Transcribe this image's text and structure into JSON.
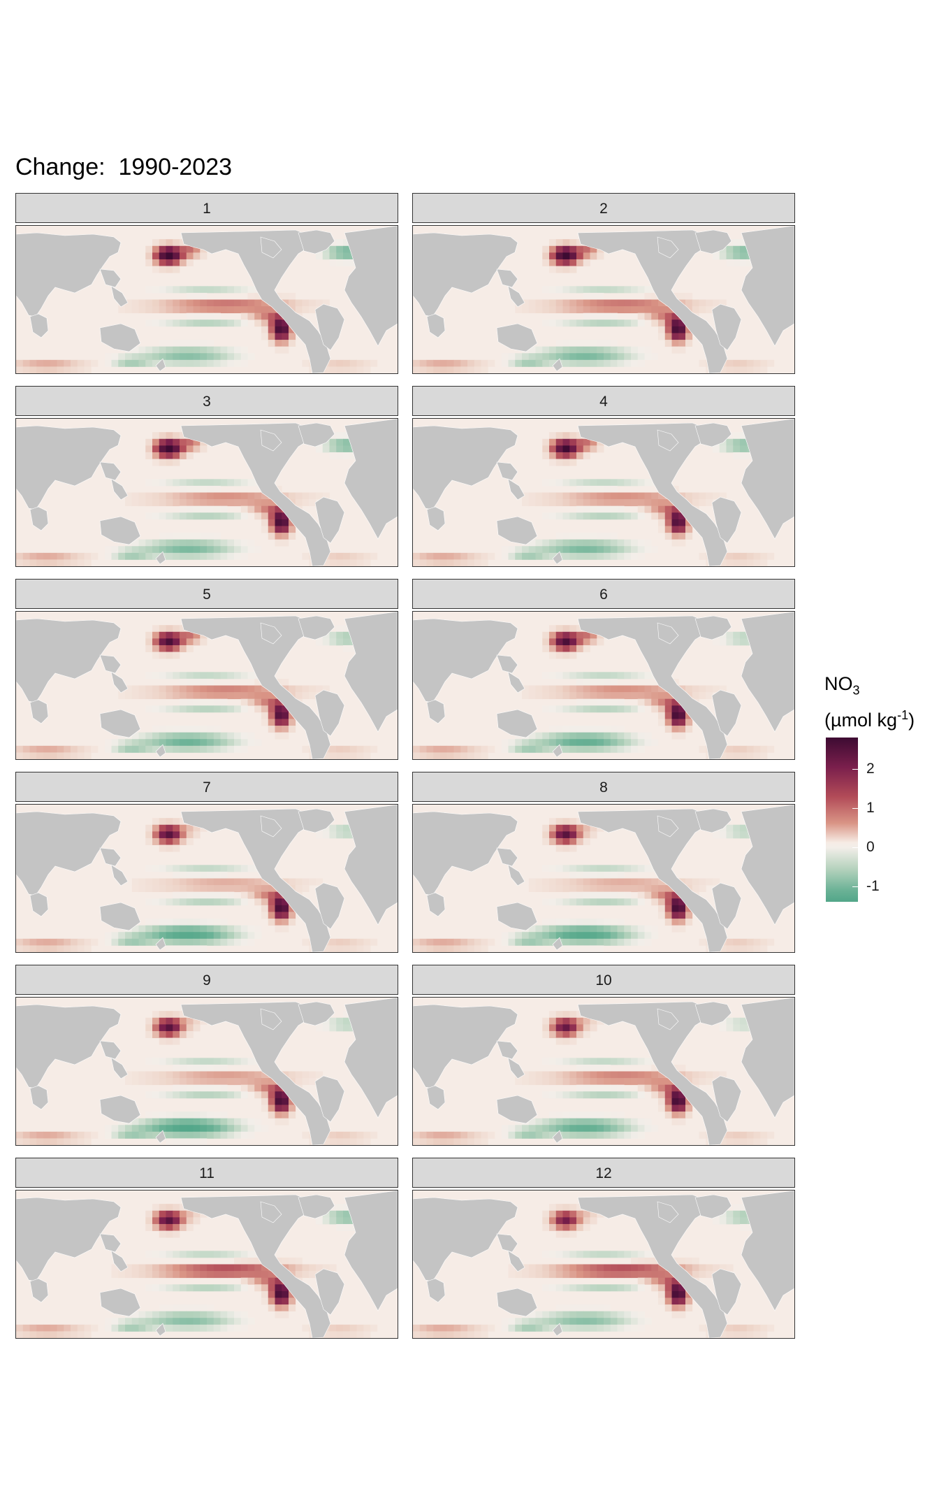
{
  "chart_data": {
    "type": "heatmap",
    "title": "Change:  1990-2023",
    "facet_variable": "month",
    "facets": [
      "1",
      "2",
      "3",
      "4",
      "5",
      "6",
      "7",
      "8",
      "9",
      "10",
      "11",
      "12"
    ],
    "legend": {
      "title_main": "NO",
      "title_sub": "3",
      "unit_open": "(µmol kg",
      "unit_sup": "-1",
      "unit_close": ")",
      "ticks": [
        {
          "label": "2",
          "value": 2
        },
        {
          "label": "1",
          "value": 1
        },
        {
          "label": "0",
          "value": 0
        },
        {
          "label": "-1",
          "value": -1
        }
      ],
      "range": [
        -1.4,
        2.8
      ],
      "placement": "right"
    },
    "colors": {
      "land": "#c4c4c4",
      "neutral": "#f6ece6",
      "strong_positive": "#3d0b32",
      "positive": "#b24b58",
      "negative": "#52a689"
    },
    "features": {
      "north_pacific_max": [
        3.0,
        3.0,
        3.0,
        2.8,
        2.6,
        2.6,
        2.4,
        2.4,
        2.4,
        2.2,
        2.4,
        2.0
      ],
      "north_atlantic_neg": [
        -1.0,
        -0.9,
        -0.9,
        -0.8,
        -0.6,
        -0.5,
        -0.5,
        -0.5,
        -0.5,
        -0.4,
        -0.8,
        -0.6
      ],
      "equatorial_band_pos": [
        1.0,
        1.0,
        0.8,
        0.8,
        0.9,
        0.8,
        0.6,
        0.6,
        0.7,
        0.9,
        1.3,
        1.3
      ],
      "upwelling_max": [
        2.8,
        2.8,
        2.8,
        2.6,
        2.6,
        2.8,
        2.8,
        2.8,
        2.8,
        2.8,
        2.8,
        2.8
      ],
      "southern_ocean_neg": [
        -0.8,
        -0.9,
        -0.9,
        -0.9,
        -1.0,
        -1.1,
        -1.3,
        -1.3,
        -1.4,
        -1.1,
        -0.8,
        -0.8
      ]
    }
  }
}
